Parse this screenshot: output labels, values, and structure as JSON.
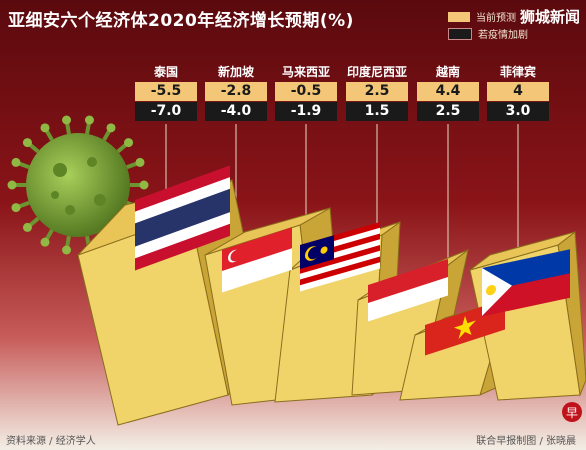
{
  "title": "亚细安六个经济体2020年经济增长预期(%)",
  "watermark": "狮城新闻",
  "legend": [
    {
      "label": "当前预测",
      "color": "#f3c678"
    },
    {
      "label": "若疫情加剧",
      "color": "#1a1a1a"
    }
  ],
  "footer": {
    "source": "资料来源 / 经济学人",
    "credit": "联合早报制图 / 张晓晨"
  },
  "colors": {
    "bg_dark": "#6b0e12",
    "bg_light": "#f3efe6",
    "block": "#f0d46a",
    "virus": "#7fa63a"
  },
  "chart_data": {
    "type": "table",
    "title": "亚细安六个经济体2020年经济增长预期(%)",
    "categories": [
      "泰国",
      "新加坡",
      "马来西亚",
      "印度尼西亚",
      "越南",
      "菲律宾"
    ],
    "series": [
      {
        "name": "当前预测",
        "values": [
          "-5.5",
          "-2.8",
          "-0.5",
          "2.5",
          "4.4",
          "4"
        ]
      },
      {
        "name": "若疫情加剧",
        "values": [
          "-7.0",
          "-4.0",
          "-1.9",
          "1.5",
          "2.5",
          "3.0"
        ]
      }
    ]
  }
}
